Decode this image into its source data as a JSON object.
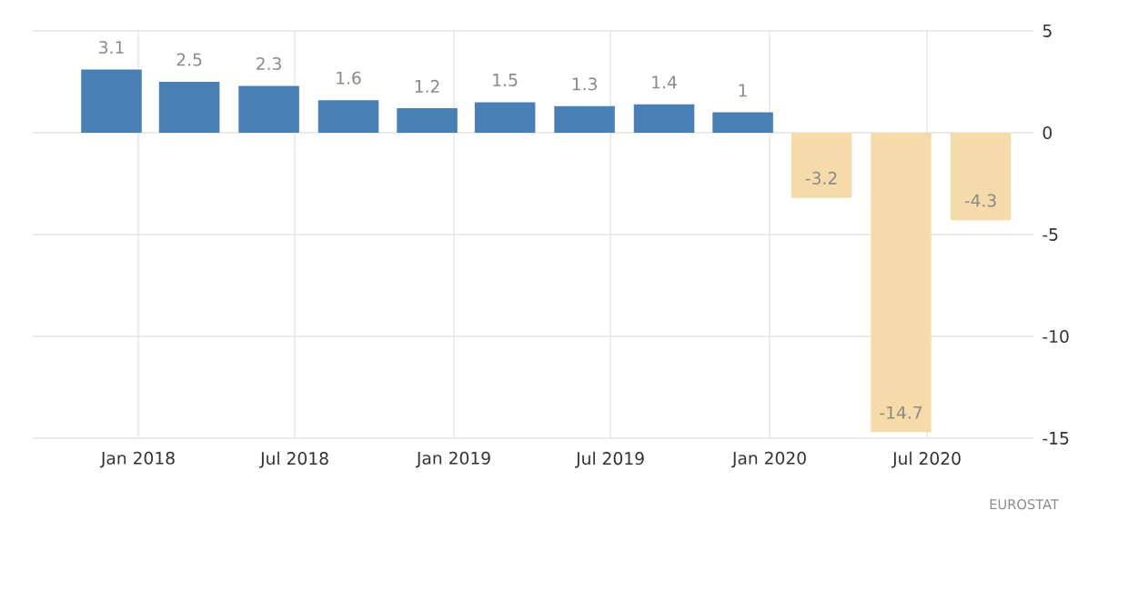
{
  "chart_data": {
    "type": "bar",
    "x": [
      "2017-12",
      "2018-03",
      "2018-06",
      "2018-09",
      "2018-12",
      "2019-03",
      "2019-06",
      "2019-09",
      "2019-12",
      "2020-03",
      "2020-06",
      "2020-09"
    ],
    "values": [
      3.1,
      2.5,
      2.3,
      1.6,
      1.2,
      1.5,
      1.3,
      1.4,
      1,
      -3.2,
      -14.7,
      -4.3
    ],
    "colors": [
      "#4a7fb5",
      "#4a7fb5",
      "#4a7fb5",
      "#4a7fb5",
      "#4a7fb5",
      "#4a7fb5",
      "#4a7fb5",
      "#4a7fb5",
      "#4a7fb5",
      "#f5dba9",
      "#f5dba9",
      "#f5dba9"
    ],
    "data_labels": true,
    "xlim": [
      "2017-09",
      "2020-11"
    ],
    "xticks": [
      {
        "value": "2018-01",
        "label": "Jan 2018"
      },
      {
        "value": "2018-07",
        "label": "Jul 2018"
      },
      {
        "value": "2019-01",
        "label": "Jan 2019"
      },
      {
        "value": "2019-07",
        "label": "Jul 2019"
      },
      {
        "value": "2020-01",
        "label": "Jan 2020"
      },
      {
        "value": "2020-07",
        "label": "Jul 2020"
      }
    ],
    "ylim": [
      -15,
      5
    ],
    "yticks": [
      5,
      0,
      -5,
      -10,
      -15
    ],
    "grid": true,
    "annotations": [
      "EUROSTAT"
    ]
  }
}
